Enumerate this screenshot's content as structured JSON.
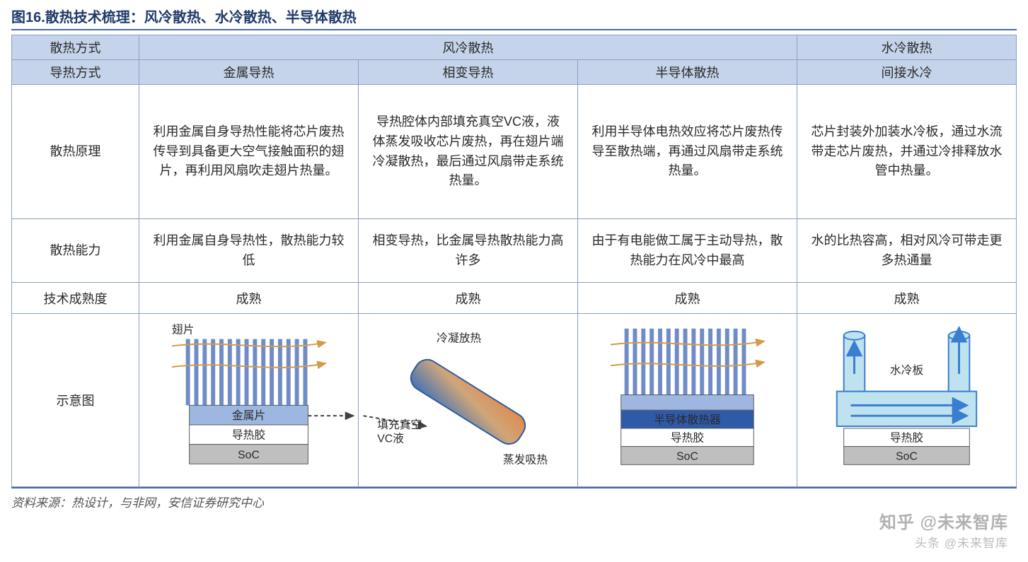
{
  "title": "图16.散热技术梳理：风冷散热、水冷散热、半导体散热",
  "source": "资料来源：热设计，与非网，安信证券研究中心",
  "watermark_top": "知乎 @未来智库",
  "watermark_bottom": "头条 @未来智库",
  "colors": {
    "header_bg": "#c5d4ea",
    "border": "#8aa0c0",
    "title_color": "#1f3a6b",
    "fin_color": "#6f8cc7",
    "metal_plate": "#9db7e0",
    "tim_fill": "#ffffff",
    "soc_fill": "#bfbfbf",
    "label_stroke": "#5a5a5a",
    "air_arrow": "#d39a4a",
    "vc_top": "#3f6fb8",
    "vc_bottom": "#e08a4a",
    "water_fill": "#bfe2ef",
    "water_arrow": "#3a7ed0",
    "semi_plate": "#2f5aa8"
  },
  "header_row1": {
    "col0": "散热方式",
    "aircool": "风冷散热",
    "watercool": "水冷散热"
  },
  "header_row2": {
    "col0": "导热方式",
    "metal": "金属导热",
    "phase": "相变导热",
    "semi": "半导体散热",
    "indirect": "间接水冷"
  },
  "rows": {
    "principle": {
      "label": "散热原理",
      "metal": "利用金属自身导热性能将芯片废热传导到具备更大空气接触面积的翅片，再利用风扇吹走翅片热量。",
      "phase": "导热腔体内部填充真空VC液，液体蒸发吸收芯片废热，再在翅片端冷凝散热，最后通过风扇带走系统热量。",
      "semi": "利用半导体电热效应将芯片废热传导至散热端，再通过风扇带走系统热量。",
      "indirect": "芯片封装外加装水冷板，通过水流带走芯片废热，并通过冷排释放水管中热量。"
    },
    "capacity": {
      "label": "散热能力",
      "metal": "利用金属自身导热性，散热能力较低",
      "phase": "相变导热，比金属导热散热能力高许多",
      "semi": "由于有电能做工属于主动导热，散热能力在风冷中最高",
      "indirect": "水的比热容高，相对风冷可带走更多热通量"
    },
    "maturity": {
      "label": "技术成熟度",
      "metal": "成熟",
      "phase": "成熟",
      "semi": "成熟",
      "indirect": "成熟"
    },
    "diagram": {
      "label": "示意图"
    }
  },
  "diagram_labels": {
    "fin": "翅片",
    "metal_plate": "金属片",
    "tim": "导热胶",
    "soc": "SoC",
    "condense": "冷凝放热",
    "evaporate": "蒸发吸热",
    "vc_fill": "填充真空\nVC液",
    "semi_plate": "半导体散热器",
    "water_plate": "水冷板"
  },
  "diagram_style": {
    "fin_count": 15,
    "fin_width": 6,
    "fin_gap": 6,
    "fin_height": 95,
    "stack_box_w": 170,
    "stack_box_h": 28,
    "air_arrow_width": 2,
    "vc_tube_w": 46,
    "vc_tube_h": 180,
    "vc_rx": 18,
    "water_pipe_w": 30
  }
}
